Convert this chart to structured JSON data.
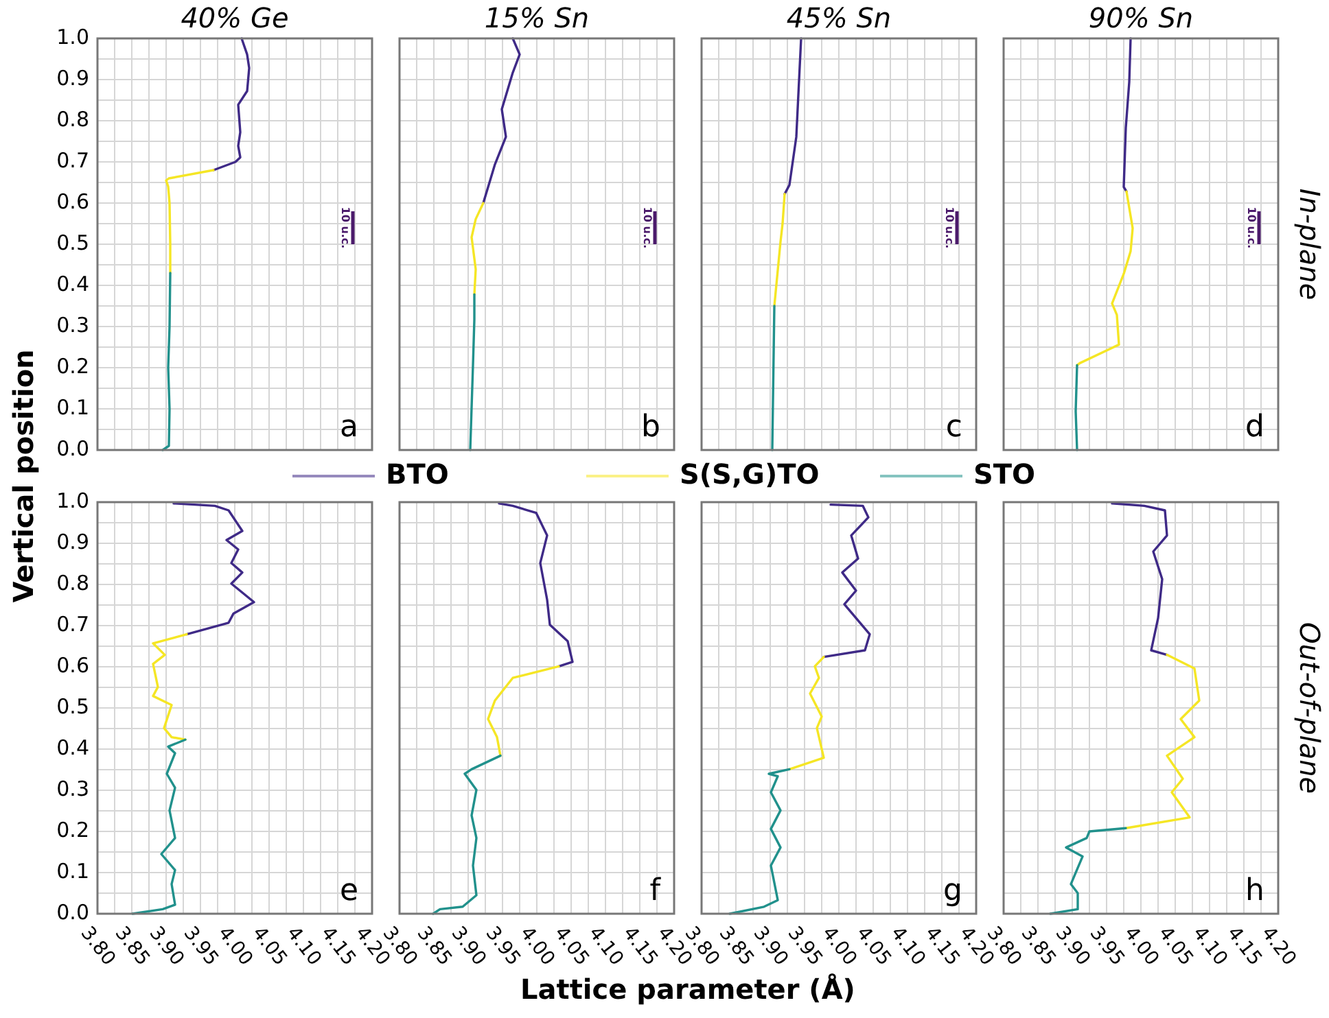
{
  "chart_data": [
    {
      "type": "line",
      "title": "40% Ge",
      "ylabel": "Vertical position",
      "xlim": [
        3.8,
        4.2
      ],
      "ylim": [
        0,
        1
      ],
      "grid": true,
      "tick_labels": "y",
      "legend": "bottom",
      "annotations": [
        "a",
        "10 u.c."
      ],
      "xticks": [
        3.8,
        3.825,
        3.85,
        3.875,
        3.9,
        3.925,
        3.95,
        3.975,
        4,
        4.025,
        4.05,
        4.075,
        4.1,
        4.125,
        4.15,
        4.175,
        4.2
      ],
      "yticks": [
        {
          "value": 0,
          "label": "0.0"
        },
        {
          "value": 0.05,
          "label": null
        },
        {
          "value": 0.1,
          "label": "0.1"
        },
        {
          "value": 0.15,
          "label": null
        },
        {
          "value": 0.2,
          "label": "0.2"
        },
        {
          "value": 0.25,
          "label": null
        },
        {
          "value": 0.3,
          "label": "0.3"
        },
        {
          "value": 0.35,
          "label": null
        },
        {
          "value": 0.4,
          "label": "0.4"
        },
        {
          "value": 0.45,
          "label": null
        },
        {
          "value": 0.5,
          "label": "0.5"
        },
        {
          "value": 0.55,
          "label": null
        },
        {
          "value": 0.6,
          "label": "0.6"
        },
        {
          "value": 0.65,
          "label": null
        },
        {
          "value": 0.7,
          "label": "0.7"
        },
        {
          "value": 0.75,
          "label": null
        },
        {
          "value": 0.8,
          "label": "0.8"
        },
        {
          "value": 0.85,
          "label": null
        },
        {
          "value": 0.9,
          "label": "0.9"
        },
        {
          "value": 0.95,
          "label": null
        },
        {
          "value": 1,
          "label": "1.0"
        }
      ],
      "series": [
        {
          "name": "BTO",
          "color": "#3f2a87",
          "x": [
            3.969,
            4.001,
            4.008,
            4.005,
            4.008,
            4.005,
            4.018,
            4.021,
            4.018,
            4.01
          ],
          "values": [
            0.68,
            0.7,
            0.711,
            0.739,
            0.772,
            0.839,
            0.872,
            0.928,
            0.961,
            1
          ]
        },
        {
          "name": "S(S,G)TO",
          "color": "#f5e625",
          "x": [
            3.906,
            3.906,
            3.905,
            3.903,
            3.9,
            3.904,
            3.969
          ],
          "values": [
            0.43,
            0.5,
            0.6,
            0.64,
            0.655,
            0.66,
            0.68
          ]
        },
        {
          "name": "STO",
          "color": "#21918c",
          "x": [
            3.895,
            3.904,
            3.905,
            3.903,
            3.905,
            3.906
          ],
          "values": [
            0,
            0.01,
            0.1,
            0.2,
            0.3,
            0.43
          ]
        }
      ]
    },
    {
      "type": "line",
      "title": "15% Sn",
      "xlim": [
        3.8,
        4.2
      ],
      "ylim": [
        0,
        1
      ],
      "grid": true,
      "tick_labels": false,
      "annotations": [
        "b",
        "10 u.c."
      ],
      "xticks": [
        3.8,
        3.825,
        3.85,
        3.875,
        3.9,
        3.925,
        3.95,
        3.975,
        4,
        4.025,
        4.05,
        4.075,
        4.1,
        4.125,
        4.15,
        4.175,
        4.2
      ],
      "yticks": [
        0,
        0.05,
        0.1,
        0.15,
        0.2,
        0.25,
        0.3,
        0.35,
        0.4,
        0.45,
        0.5,
        0.55,
        0.6,
        0.65,
        0.7,
        0.75,
        0.8,
        0.85,
        0.9,
        0.95,
        1
      ],
      "series": [
        {
          "color": "#3f2a87",
          "x": [
            3.922,
            3.939,
            3.955,
            3.949,
            3.965,
            3.975,
            3.965
          ],
          "values": [
            0.6,
            0.694,
            0.761,
            0.828,
            0.917,
            0.961,
            1
          ]
        },
        {
          "color": "#f5e625",
          "x": [
            3.909,
            3.911,
            3.905,
            3.911,
            3.922
          ],
          "values": [
            0.378,
            0.439,
            0.517,
            0.561,
            0.6
          ]
        },
        {
          "color": "#21918c",
          "x": [
            3.903,
            3.907,
            3.909,
            3.909
          ],
          "values": [
            0,
            0.206,
            0.317,
            0.378
          ]
        }
      ]
    },
    {
      "type": "line",
      "title": "45% Sn",
      "xlim": [
        3.8,
        4.2
      ],
      "ylim": [
        0,
        1
      ],
      "grid": true,
      "tick_labels": false,
      "annotations": [
        "c",
        "10 u.c."
      ],
      "xticks": [
        3.8,
        3.825,
        3.85,
        3.875,
        3.9,
        3.925,
        3.95,
        3.975,
        4,
        4.025,
        4.05,
        4.075,
        4.1,
        4.125,
        4.15,
        4.175,
        4.2
      ],
      "yticks": [
        0,
        0.05,
        0.1,
        0.15,
        0.2,
        0.25,
        0.3,
        0.35,
        0.4,
        0.45,
        0.5,
        0.55,
        0.6,
        0.65,
        0.7,
        0.75,
        0.8,
        0.85,
        0.9,
        0.95,
        1
      ],
      "series": [
        {
          "color": "#3f2a87",
          "x": [
            3.921,
            3.928,
            3.938,
            3.945
          ],
          "values": [
            0.622,
            0.644,
            0.761,
            1
          ]
        },
        {
          "color": "#f5e625",
          "x": [
            3.906,
            3.915,
            3.918,
            3.921
          ],
          "values": [
            0.35,
            0.506,
            0.55,
            0.622
          ]
        },
        {
          "color": "#21918c",
          "x": [
            3.903,
            3.906
          ],
          "values": [
            0,
            0.35
          ]
        }
      ]
    },
    {
      "type": "line",
      "title": "90% Sn",
      "xlim": [
        3.8,
        4.2
      ],
      "ylim": [
        0,
        1
      ],
      "grid": true,
      "tick_labels": false,
      "annotations": [
        "d",
        "10 u.c.",
        "In-plane"
      ],
      "xticks": [
        3.8,
        3.825,
        3.85,
        3.875,
        3.9,
        3.925,
        3.95,
        3.975,
        4,
        4.025,
        4.05,
        4.075,
        4.1,
        4.125,
        4.15,
        4.175,
        4.2
      ],
      "yticks": [
        0,
        0.05,
        0.1,
        0.15,
        0.2,
        0.25,
        0.3,
        0.35,
        0.4,
        0.45,
        0.5,
        0.55,
        0.6,
        0.65,
        0.7,
        0.75,
        0.8,
        0.85,
        0.9,
        0.95,
        1
      ],
      "series": [
        {
          "color": "#3f2a87",
          "x": [
            3.979,
            3.975,
            3.978,
            3.983,
            3.985
          ],
          "values": [
            0.628,
            0.639,
            0.783,
            0.894,
            1
          ]
        },
        {
          "color": "#f5e625",
          "x": [
            3.907,
            3.911,
            3.968,
            3.965,
            3.958,
            3.975,
            3.985,
            3.988,
            3.979
          ],
          "values": [
            0.206,
            0.211,
            0.256,
            0.328,
            0.356,
            0.428,
            0.483,
            0.539,
            0.628
          ]
        },
        {
          "color": "#21918c",
          "x": [
            3.907,
            3.905,
            3.907
          ],
          "values": [
            0,
            0.094,
            0.206
          ]
        }
      ]
    },
    {
      "type": "line",
      "xlabel": "Lattice parameter (Å)",
      "xlim": [
        3.8,
        4.2
      ],
      "ylim": [
        0,
        1
      ],
      "grid": true,
      "annotations": [
        "e"
      ],
      "xticks": [
        {
          "value": 3.8,
          "label": "3.80"
        },
        {
          "value": 3.825,
          "label": null
        },
        {
          "value": 3.85,
          "label": "3.85"
        },
        {
          "value": 3.875,
          "label": null
        },
        {
          "value": 3.9,
          "label": "3.90"
        },
        {
          "value": 3.925,
          "label": null
        },
        {
          "value": 3.95,
          "label": "3.95"
        },
        {
          "value": 3.975,
          "label": null
        },
        {
          "value": 4,
          "label": "4.00"
        },
        {
          "value": 4.025,
          "label": null
        },
        {
          "value": 4.05,
          "label": "4.05"
        },
        {
          "value": 4.075,
          "label": null
        },
        {
          "value": 4.1,
          "label": "4.10"
        },
        {
          "value": 4.125,
          "label": null
        },
        {
          "value": 4.15,
          "label": "4.15"
        },
        {
          "value": 4.175,
          "label": null
        },
        {
          "value": 4.2,
          "label": "4.20"
        }
      ],
      "yticks": [
        {
          "value": 0,
          "label": "0.0"
        },
        {
          "value": 0.05,
          "label": null
        },
        {
          "value": 0.1,
          "label": "0.1"
        },
        {
          "value": 0.15,
          "label": null
        },
        {
          "value": 0.2,
          "label": "0.2"
        },
        {
          "value": 0.25,
          "label": null
        },
        {
          "value": 0.3,
          "label": "0.3"
        },
        {
          "value": 0.35,
          "label": null
        },
        {
          "value": 0.4,
          "label": "0.4"
        },
        {
          "value": 0.45,
          "label": null
        },
        {
          "value": 0.5,
          "label": "0.5"
        },
        {
          "value": 0.55,
          "label": null
        },
        {
          "value": 0.6,
          "label": "0.6"
        },
        {
          "value": 0.65,
          "label": null
        },
        {
          "value": 0.7,
          "label": "0.7"
        },
        {
          "value": 0.75,
          "label": null
        },
        {
          "value": 0.8,
          "label": "0.8"
        },
        {
          "value": 0.85,
          "label": null
        },
        {
          "value": 0.9,
          "label": "0.9"
        },
        {
          "value": 0.95,
          "label": null
        },
        {
          "value": 1,
          "label": "1.0"
        }
      ],
      "series": [
        {
          "color": "#3f2a87",
          "x": [
            3.93,
            3.991,
            3.998,
            4.028,
            3.995,
            4.011,
            3.995,
            4.005,
            3.988,
            4.011,
            3.991,
            3.971,
            3.911
          ],
          "values": [
            0.679,
            0.707,
            0.729,
            0.757,
            0.802,
            0.829,
            0.852,
            0.885,
            0.908,
            0.93,
            0.98,
            0.991,
            0.997
          ]
        },
        {
          "color": "#f5e625",
          "x": [
            3.928,
            3.908,
            3.897,
            3.908,
            3.881,
            3.888,
            3.881,
            3.898,
            3.881,
            3.93
          ],
          "values": [
            0.423,
            0.429,
            0.451,
            0.507,
            0.529,
            0.551,
            0.607,
            0.629,
            0.657,
            0.679
          ]
        },
        {
          "color": "#21918c",
          "x": [
            3.851,
            3.895,
            3.913,
            3.908,
            3.913,
            3.893,
            3.913,
            3.905,
            3.913,
            3.901,
            3.913,
            3.903,
            3.928
          ],
          "values": [
            0,
            0.011,
            0.022,
            0.072,
            0.106,
            0.145,
            0.184,
            0.251,
            0.306,
            0.34,
            0.39,
            0.406,
            0.423
          ]
        }
      ]
    },
    {
      "type": "line",
      "xlim": [
        3.8,
        4.2
      ],
      "ylim": [
        0,
        1
      ],
      "grid": true,
      "tick_labels": "x",
      "annotations": [
        "f"
      ],
      "xticks": [
        {
          "value": 3.8,
          "label": "3.80"
        },
        {
          "value": 3.825,
          "label": null
        },
        {
          "value": 3.85,
          "label": "3.85"
        },
        {
          "value": 3.875,
          "label": null
        },
        {
          "value": 3.9,
          "label": "3.90"
        },
        {
          "value": 3.925,
          "label": null
        },
        {
          "value": 3.95,
          "label": "3.95"
        },
        {
          "value": 3.975,
          "label": null
        },
        {
          "value": 4,
          "label": "4.00"
        },
        {
          "value": 4.025,
          "label": null
        },
        {
          "value": 4.05,
          "label": "4.05"
        },
        {
          "value": 4.075,
          "label": null
        },
        {
          "value": 4.1,
          "label": "4.10"
        },
        {
          "value": 4.125,
          "label": null
        },
        {
          "value": 4.15,
          "label": "4.15"
        },
        {
          "value": 4.175,
          "label": null
        },
        {
          "value": 4.2,
          "label": "4.20"
        }
      ],
      "yticks": [
        0,
        0.05,
        0.1,
        0.15,
        0.2,
        0.25,
        0.3,
        0.35,
        0.4,
        0.45,
        0.5,
        0.55,
        0.6,
        0.65,
        0.7,
        0.75,
        0.8,
        0.85,
        0.9,
        0.95,
        1
      ],
      "series": [
        {
          "color": "#3f2a87",
          "x": [
            4.032,
            4.052,
            4.045,
            4.019,
            4.015,
            4.005,
            4.015,
            3.999,
            3.965,
            3.945
          ],
          "values": [
            0.601,
            0.612,
            0.662,
            0.702,
            0.763,
            0.852,
            0.919,
            0.974,
            0.991,
            0.997
          ]
        },
        {
          "color": "#f5e625",
          "x": [
            3.947,
            3.942,
            3.929,
            3.939,
            3.965,
            4.032
          ],
          "values": [
            0.384,
            0.429,
            0.473,
            0.518,
            0.573,
            0.601
          ]
        },
        {
          "color": "#21918c",
          "x": [
            3.849,
            3.859,
            3.892,
            3.912,
            3.907,
            3.912,
            3.905,
            3.912,
            3.895,
            3.905,
            3.947
          ],
          "values": [
            0,
            0.011,
            0.017,
            0.045,
            0.117,
            0.184,
            0.239,
            0.301,
            0.34,
            0.351,
            0.384
          ]
        }
      ]
    },
    {
      "type": "line",
      "xlim": [
        3.8,
        4.2
      ],
      "ylim": [
        0,
        1
      ],
      "grid": true,
      "tick_labels": "x",
      "annotations": [
        "g"
      ],
      "xticks": [
        {
          "value": 3.8,
          "label": "3.80"
        },
        {
          "value": 3.825,
          "label": null
        },
        {
          "value": 3.85,
          "label": "3.85"
        },
        {
          "value": 3.875,
          "label": null
        },
        {
          "value": 3.9,
          "label": "3.90"
        },
        {
          "value": 3.925,
          "label": null
        },
        {
          "value": 3.95,
          "label": "3.95"
        },
        {
          "value": 3.975,
          "label": null
        },
        {
          "value": 4,
          "label": "4.00"
        },
        {
          "value": 4.025,
          "label": null
        },
        {
          "value": 4.05,
          "label": "4.05"
        },
        {
          "value": 4.075,
          "label": null
        },
        {
          "value": 4.1,
          "label": "4.10"
        },
        {
          "value": 4.125,
          "label": null
        },
        {
          "value": 4.15,
          "label": "4.15"
        },
        {
          "value": 4.175,
          "label": null
        },
        {
          "value": 4.2,
          "label": "4.20"
        }
      ],
      "yticks": [
        0,
        0.05,
        0.1,
        0.15,
        0.2,
        0.25,
        0.3,
        0.35,
        0.4,
        0.45,
        0.5,
        0.55,
        0.6,
        0.65,
        0.7,
        0.75,
        0.8,
        0.85,
        0.9,
        0.95,
        1
      ],
      "series": [
        {
          "color": "#3f2a87",
          "x": [
            3.978,
            4.038,
            4.045,
            4.008,
            4.025,
            4.005,
            4.028,
            4.018,
            4.043,
            4.035,
            3.988
          ],
          "values": [
            0.624,
            0.64,
            0.679,
            0.752,
            0.785,
            0.829,
            0.863,
            0.919,
            0.963,
            0.991,
            0.994
          ]
        },
        {
          "color": "#f5e625",
          "x": [
            3.928,
            3.978,
            3.968,
            3.975,
            3.958,
            3.971,
            3.965,
            3.978
          ],
          "values": [
            0.351,
            0.379,
            0.451,
            0.479,
            0.535,
            0.573,
            0.601,
            0.624
          ]
        },
        {
          "color": "#21918c",
          "x": [
            3.841,
            3.891,
            3.911,
            3.901,
            3.915,
            3.901,
            3.915,
            3.901,
            3.911,
            3.898,
            3.928
          ],
          "values": [
            0,
            0.017,
            0.033,
            0.117,
            0.161,
            0.206,
            0.251,
            0.295,
            0.334,
            0.34,
            0.351
          ]
        }
      ]
    },
    {
      "type": "line",
      "xlim": [
        3.8,
        4.2
      ],
      "ylim": [
        0,
        1
      ],
      "grid": true,
      "tick_labels": "x",
      "annotations": [
        "h",
        "Out-of-plane"
      ],
      "xticks": [
        {
          "value": 3.8,
          "label": "3.80"
        },
        {
          "value": 3.825,
          "label": null
        },
        {
          "value": 3.85,
          "label": "3.85"
        },
        {
          "value": 3.875,
          "label": null
        },
        {
          "value": 3.9,
          "label": "3.90"
        },
        {
          "value": 3.925,
          "label": null
        },
        {
          "value": 3.95,
          "label": "3.95"
        },
        {
          "value": 3.975,
          "label": null
        },
        {
          "value": 4,
          "label": "4.00"
        },
        {
          "value": 4.025,
          "label": null
        },
        {
          "value": 4.05,
          "label": "4.05"
        },
        {
          "value": 4.075,
          "label": null
        },
        {
          "value": 4.1,
          "label": "4.10"
        },
        {
          "value": 4.125,
          "label": null
        },
        {
          "value": 4.15,
          "label": "4.15"
        },
        {
          "value": 4.175,
          "label": null
        },
        {
          "value": 4.2,
          "label": "4.20"
        }
      ],
      "yticks": [
        0,
        0.05,
        0.1,
        0.15,
        0.2,
        0.25,
        0.3,
        0.35,
        0.4,
        0.45,
        0.5,
        0.55,
        0.6,
        0.65,
        0.7,
        0.75,
        0.8,
        0.85,
        0.9,
        0.95,
        1
      ],
      "series": [
        {
          "color": "#3f2a87",
          "x": [
            4.038,
            4.015,
            4.025,
            4.031,
            4.018,
            4.038,
            4.035,
            4.005,
            3.958
          ],
          "values": [
            0.629,
            0.64,
            0.718,
            0.813,
            0.88,
            0.919,
            0.98,
            0.991,
            0.997
          ]
        },
        {
          "color": "#f5e625",
          "x": [
            3.978,
            4.071,
            4.045,
            4.061,
            4.038,
            4.078,
            4.058,
            4.085,
            4.078,
            4.038
          ],
          "values": [
            0.208,
            0.234,
            0.295,
            0.328,
            0.384,
            0.429,
            0.473,
            0.518,
            0.596,
            0.629
          ]
        },
        {
          "color": "#21918c",
          "x": [
            3.868,
            3.908,
            3.908,
            3.898,
            3.915,
            3.891,
            3.921,
            3.925,
            3.978
          ],
          "values": [
            0,
            0.011,
            0.05,
            0.072,
            0.139,
            0.161,
            0.184,
            0.2,
            0.208
          ]
        }
      ]
    }
  ]
}
